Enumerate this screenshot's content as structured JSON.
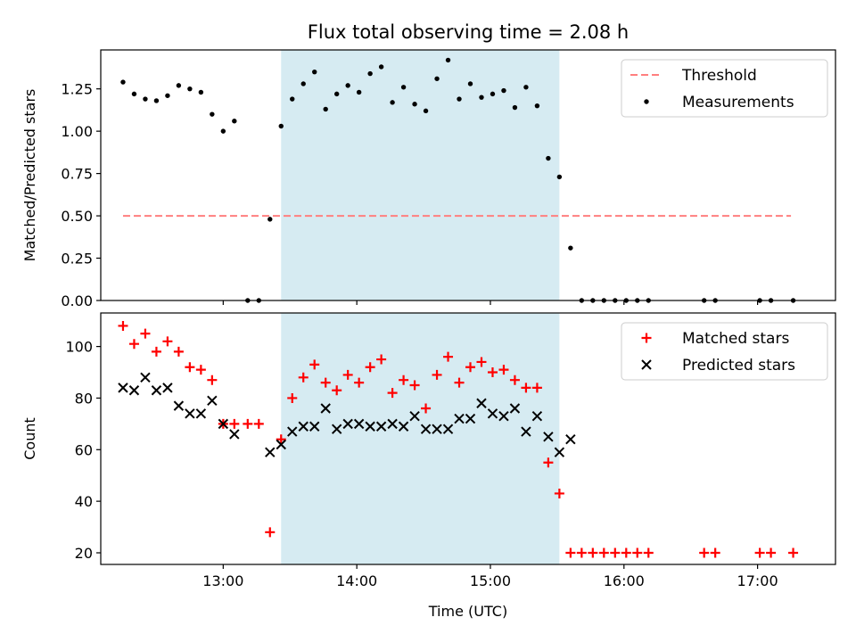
{
  "figure": {
    "title": "Flux total observing time = 2.08 h"
  },
  "chart_data": [
    {
      "type": "scatter",
      "ylabel": "Matched/Predicted stars",
      "xlabel": "",
      "xlim": [
        "12:05",
        "17:35"
      ],
      "ylim": [
        0,
        1.48
      ],
      "yticks": [
        "0.00",
        "0.25",
        "0.50",
        "0.75",
        "1.00",
        "1.25"
      ],
      "grid": false,
      "legend": "upper right",
      "shaded_interval": [
        "13:26",
        "15:31"
      ],
      "shade_color": "#add8e6",
      "threshold": {
        "name": "Threshold",
        "value": 0.5,
        "x_range": [
          "12:15",
          "17:15"
        ],
        "color": "#ff7f7f",
        "style": "dashed"
      },
      "series": [
        {
          "name": "Measurements",
          "color": "#000000",
          "marker": "dot",
          "points": [
            [
              "12:15",
              1.29
            ],
            [
              "12:20",
              1.22
            ],
            [
              "12:25",
              1.19
            ],
            [
              "12:30",
              1.18
            ],
            [
              "12:35",
              1.21
            ],
            [
              "12:40",
              1.27
            ],
            [
              "12:45",
              1.25
            ],
            [
              "12:50",
              1.23
            ],
            [
              "12:55",
              1.1
            ],
            [
              "13:00",
              1.0
            ],
            [
              "13:05",
              1.06
            ],
            [
              "13:11",
              0.0
            ],
            [
              "13:16",
              0.0
            ],
            [
              "13:21",
              0.48
            ],
            [
              "13:26",
              1.03
            ],
            [
              "13:31",
              1.19
            ],
            [
              "13:36",
              1.28
            ],
            [
              "13:41",
              1.35
            ],
            [
              "13:46",
              1.13
            ],
            [
              "13:51",
              1.22
            ],
            [
              "13:56",
              1.27
            ],
            [
              "14:01",
              1.23
            ],
            [
              "14:06",
              1.34
            ],
            [
              "14:11",
              1.38
            ],
            [
              "14:16",
              1.17
            ],
            [
              "14:21",
              1.26
            ],
            [
              "14:26",
              1.16
            ],
            [
              "14:31",
              1.12
            ],
            [
              "14:36",
              1.31
            ],
            [
              "14:41",
              1.42
            ],
            [
              "14:46",
              1.19
            ],
            [
              "14:51",
              1.28
            ],
            [
              "14:56",
              1.2
            ],
            [
              "15:01",
              1.22
            ],
            [
              "15:06",
              1.24
            ],
            [
              "15:11",
              1.14
            ],
            [
              "15:16",
              1.26
            ],
            [
              "15:21",
              1.15
            ],
            [
              "15:26",
              0.84
            ],
            [
              "15:31",
              0.73
            ],
            [
              "15:36",
              0.31
            ],
            [
              "15:41",
              0.0
            ],
            [
              "15:46",
              0.0
            ],
            [
              "15:51",
              0.0
            ],
            [
              "15:56",
              0.0
            ],
            [
              "16:01",
              0.0
            ],
            [
              "16:06",
              0.0
            ],
            [
              "16:11",
              0.0
            ],
            [
              "16:36",
              0.0
            ],
            [
              "16:41",
              0.0
            ],
            [
              "17:01",
              0.0
            ],
            [
              "17:06",
              0.0
            ],
            [
              "17:16",
              0.0
            ]
          ]
        }
      ]
    },
    {
      "type": "scatter",
      "ylabel": "Count",
      "xlabel": "Time (UTC)",
      "xlim": [
        "12:05",
        "17:35"
      ],
      "ylim": [
        15.5,
        113
      ],
      "yticks": [
        20,
        40,
        60,
        80,
        100
      ],
      "xticks": [
        "13:00",
        "14:00",
        "15:00",
        "16:00",
        "17:00"
      ],
      "grid": false,
      "legend": "upper right",
      "shaded_interval": [
        "13:26",
        "15:31"
      ],
      "shade_color": "#add8e6",
      "series": [
        {
          "name": "Matched stars",
          "color": "#ff0000",
          "marker": "plus",
          "points": [
            [
              "12:15",
              108
            ],
            [
              "12:20",
              101
            ],
            [
              "12:25",
              105
            ],
            [
              "12:30",
              98
            ],
            [
              "12:35",
              102
            ],
            [
              "12:40",
              98
            ],
            [
              "12:45",
              92
            ],
            [
              "12:50",
              91
            ],
            [
              "12:55",
              87
            ],
            [
              "13:00",
              70
            ],
            [
              "13:05",
              70
            ],
            [
              "13:11",
              70
            ],
            [
              "13:16",
              70
            ],
            [
              "13:21",
              28
            ],
            [
              "13:26",
              64
            ],
            [
              "13:31",
              80
            ],
            [
              "13:36",
              88
            ],
            [
              "13:41",
              93
            ],
            [
              "13:46",
              86
            ],
            [
              "13:51",
              83
            ],
            [
              "13:56",
              89
            ],
            [
              "14:01",
              86
            ],
            [
              "14:06",
              92
            ],
            [
              "14:11",
              95
            ],
            [
              "14:16",
              82
            ],
            [
              "14:21",
              87
            ],
            [
              "14:26",
              85
            ],
            [
              "14:31",
              76
            ],
            [
              "14:36",
              89
            ],
            [
              "14:41",
              96
            ],
            [
              "14:46",
              86
            ],
            [
              "14:51",
              92
            ],
            [
              "14:56",
              94
            ],
            [
              "15:01",
              90
            ],
            [
              "15:06",
              91
            ],
            [
              "15:11",
              87
            ],
            [
              "15:16",
              84
            ],
            [
              "15:21",
              84
            ],
            [
              "15:26",
              55
            ],
            [
              "15:31",
              43
            ],
            [
              "15:36",
              20
            ],
            [
              "15:41",
              20
            ],
            [
              "15:46",
              20
            ],
            [
              "15:51",
              20
            ],
            [
              "15:56",
              20
            ],
            [
              "16:01",
              20
            ],
            [
              "16:06",
              20
            ],
            [
              "16:11",
              20
            ],
            [
              "16:36",
              20
            ],
            [
              "16:41",
              20
            ],
            [
              "17:01",
              20
            ],
            [
              "17:06",
              20
            ],
            [
              "17:16",
              20
            ]
          ]
        },
        {
          "name": "Predicted stars",
          "color": "#000000",
          "marker": "x",
          "points": [
            [
              "12:15",
              84
            ],
            [
              "12:20",
              83
            ],
            [
              "12:25",
              88
            ],
            [
              "12:30",
              83
            ],
            [
              "12:35",
              84
            ],
            [
              "12:40",
              77
            ],
            [
              "12:45",
              74
            ],
            [
              "12:50",
              74
            ],
            [
              "12:55",
              79
            ],
            [
              "13:00",
              70
            ],
            [
              "13:05",
              66
            ],
            [
              "13:21",
              59
            ],
            [
              "13:26",
              62
            ],
            [
              "13:31",
              67
            ],
            [
              "13:36",
              69
            ],
            [
              "13:41",
              69
            ],
            [
              "13:46",
              76
            ],
            [
              "13:51",
              68
            ],
            [
              "13:56",
              70
            ],
            [
              "14:01",
              70
            ],
            [
              "14:06",
              69
            ],
            [
              "14:11",
              69
            ],
            [
              "14:16",
              70
            ],
            [
              "14:21",
              69
            ],
            [
              "14:26",
              73
            ],
            [
              "14:31",
              68
            ],
            [
              "14:36",
              68
            ],
            [
              "14:41",
              68
            ],
            [
              "14:46",
              72
            ],
            [
              "14:51",
              72
            ],
            [
              "14:56",
              78
            ],
            [
              "15:01",
              74
            ],
            [
              "15:06",
              73
            ],
            [
              "15:11",
              76
            ],
            [
              "15:16",
              67
            ],
            [
              "15:21",
              73
            ],
            [
              "15:26",
              65
            ],
            [
              "15:31",
              59
            ],
            [
              "15:36",
              64
            ]
          ]
        }
      ]
    }
  ]
}
